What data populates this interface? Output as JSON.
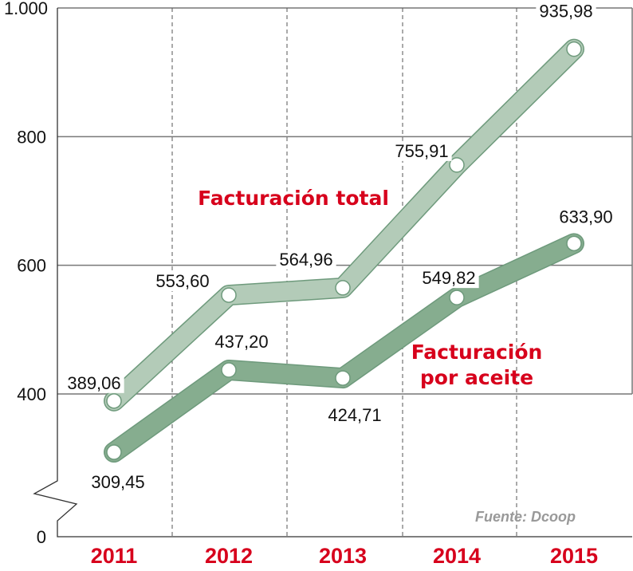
{
  "chart_data": {
    "type": "line",
    "categories": [
      "2011",
      "2012",
      "2013",
      "2014",
      "2015"
    ],
    "series": [
      {
        "name": "Facturación total",
        "values": [
          389.06,
          553.6,
          564.96,
          755.91,
          935.98
        ],
        "labels": [
          "389,06",
          "553,60",
          "564,96",
          "755,91",
          "935,98"
        ],
        "color": "#b3cbb8",
        "stroke": "#6e9a7c"
      },
      {
        "name": "Facturación por aceite",
        "name_lines": [
          "Facturación",
          "por aceite"
        ],
        "values": [
          309.45,
          437.2,
          424.71,
          549.82,
          633.9
        ],
        "labels": [
          "309,45",
          "437,20",
          "424,71",
          "549,82",
          "633,90"
        ],
        "color": "#86ad8f",
        "stroke": "#6e9a7c"
      }
    ],
    "yticks": [
      0,
      400,
      600,
      800,
      1000
    ],
    "ytick_labels": [
      "0",
      "400",
      "600",
      "800",
      "1.000"
    ],
    "ylim": [
      0,
      1000
    ],
    "axis_break": true,
    "grid": true,
    "label_color": "#d7001c",
    "source": "Fuente: Dcoop"
  }
}
